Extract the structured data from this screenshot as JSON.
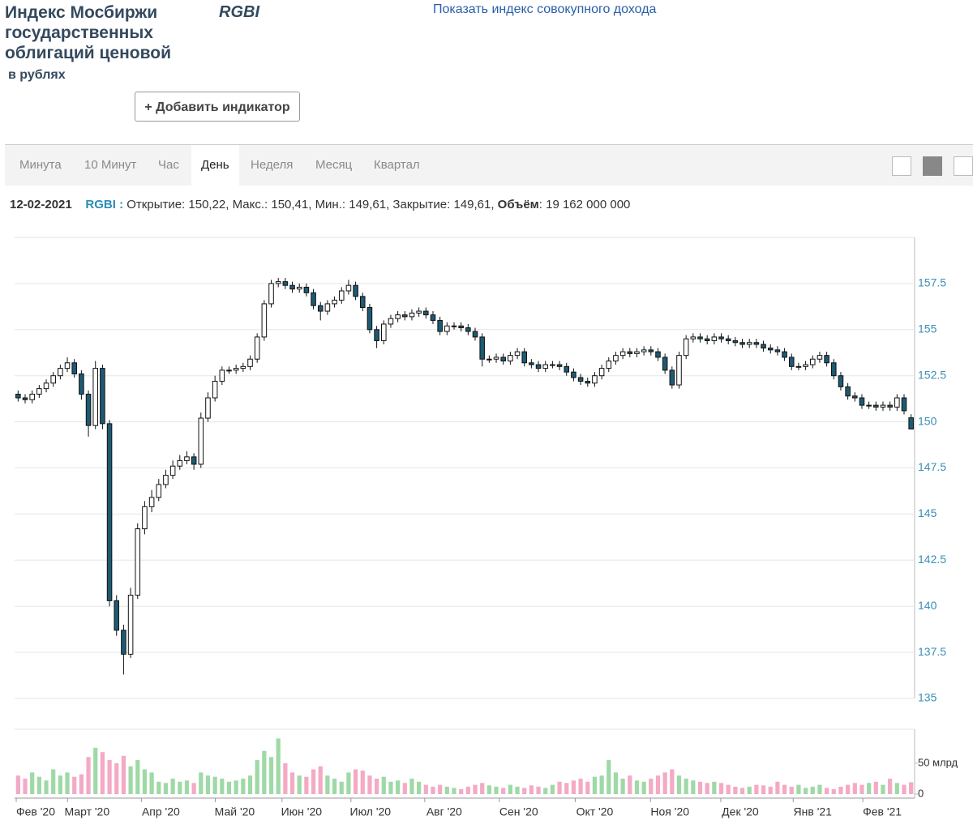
{
  "header": {
    "title": "Индекс Мосбиржи государственных облигаций ценовой",
    "ticker": "RGBI",
    "unit": "в рублях",
    "link": "Показать индекс совокупного дохода",
    "add_button": "+ Добавить индикатор"
  },
  "tabs": [
    "Минута",
    "10 Минут",
    "Час",
    "День",
    "Неделя",
    "Месяц",
    "Квартал"
  ],
  "active_tab": 3,
  "info": {
    "date": "12-02-2021",
    "ticker": "RGBI",
    "separator": ":",
    "ohlc": " Открытие: 150,22, Макс.: 150,41, Мин.: 149,61, Закрытие: 149,61, ",
    "volume_label": "Объём",
    "volume_text": ": 19 162 000 000"
  },
  "chart_data": {
    "type": "candlestick",
    "open": [
      151.5,
      151.3,
      151.2,
      151.5,
      151.8,
      152.1,
      152.5,
      152.9,
      153.2,
      152.6,
      151.5,
      149.8,
      152.9,
      149.9,
      140.3,
      138.7,
      137.4,
      140.6,
      144.2,
      145.4,
      145.9,
      146.6,
      147.1,
      147.6,
      147.9,
      148.1,
      147.7,
      150.2,
      151.3,
      152.2,
      152.8,
      152.8,
      152.9,
      153.0,
      153.4,
      154.6,
      156.4,
      157.5,
      157.6,
      157.4,
      157.2,
      157.3,
      157.0,
      156.3,
      156.0,
      156.4,
      156.6,
      157.1,
      157.4,
      156.8,
      156.2,
      155.0,
      154.4,
      155.3,
      155.6,
      155.8,
      155.7,
      155.9,
      156.0,
      155.8,
      155.5,
      154.9,
      155.2,
      155.2,
      155.1,
      154.9,
      154.6,
      153.4,
      153.4,
      153.5,
      153.3,
      153.6,
      153.8,
      153.2,
      153.1,
      152.9,
      153.1,
      153.1,
      153.0,
      152.7,
      152.4,
      152.2,
      152.1,
      152.5,
      152.9,
      153.3,
      153.6,
      153.8,
      153.7,
      153.8,
      153.9,
      153.8,
      153.5,
      152.8,
      152.0,
      153.6,
      154.5,
      154.6,
      154.5,
      154.4,
      154.6,
      154.5,
      154.4,
      154.3,
      154.2,
      154.3,
      154.2,
      154.0,
      153.9,
      153.8,
      153.5,
      153.0,
      153.0,
      153.1,
      153.4,
      153.6,
      153.2,
      152.5,
      151.9,
      151.4,
      151.3,
      150.9,
      150.9,
      150.8,
      150.9,
      150.8,
      151.3,
      150.22
    ],
    "high": [
      151.7,
      151.5,
      151.7,
      152.0,
      152.3,
      152.7,
      153.1,
      153.5,
      153.4,
      152.8,
      151.7,
      153.3,
      153.1,
      150.1,
      140.6,
      139.0,
      141.0,
      144.5,
      145.7,
      146.3,
      146.9,
      147.4,
      147.9,
      148.2,
      148.4,
      148.3,
      150.5,
      151.6,
      152.5,
      153.0,
      153.0,
      153.1,
      153.2,
      153.6,
      154.8,
      156.6,
      157.7,
      157.8,
      157.8,
      157.6,
      157.5,
      157.5,
      157.2,
      156.5,
      156.6,
      156.8,
      157.3,
      157.7,
      157.6,
      157.0,
      156.4,
      155.2,
      155.5,
      155.8,
      156.0,
      156.0,
      156.1,
      156.2,
      156.2,
      156.0,
      155.7,
      155.4,
      155.4,
      155.4,
      155.3,
      155.1,
      154.8,
      153.6,
      153.7,
      153.7,
      153.8,
      154.0,
      154.0,
      153.4,
      153.3,
      153.3,
      153.3,
      153.3,
      153.2,
      152.9,
      152.6,
      152.4,
      152.7,
      153.1,
      153.5,
      153.8,
      154.0,
      154.0,
      154.0,
      154.1,
      154.1,
      154.0,
      153.7,
      153.0,
      153.8,
      154.7,
      154.8,
      154.8,
      154.7,
      154.8,
      154.8,
      154.7,
      154.6,
      154.5,
      154.5,
      154.5,
      154.4,
      154.2,
      154.1,
      154.0,
      153.7,
      153.2,
      153.3,
      153.6,
      153.8,
      153.8,
      153.4,
      152.7,
      152.1,
      151.6,
      151.5,
      151.1,
      151.1,
      151.1,
      151.1,
      151.5,
      151.5,
      150.41
    ],
    "low": [
      151.1,
      151.0,
      151.0,
      151.3,
      151.6,
      151.9,
      152.3,
      152.7,
      152.4,
      151.2,
      149.2,
      149.6,
      149.6,
      140.0,
      138.4,
      136.3,
      137.2,
      140.4,
      143.9,
      145.1,
      145.7,
      146.4,
      146.9,
      147.4,
      147.7,
      147.4,
      147.5,
      150.0,
      151.1,
      152.0,
      152.6,
      152.6,
      152.7,
      152.8,
      153.2,
      154.4,
      156.2,
      157.3,
      157.2,
      157.0,
      157.0,
      156.8,
      156.1,
      155.5,
      155.8,
      156.2,
      156.4,
      156.9,
      156.6,
      156.0,
      154.8,
      154.0,
      154.2,
      155.1,
      155.4,
      155.5,
      155.5,
      155.7,
      155.6,
      155.3,
      154.7,
      154.7,
      155.0,
      154.9,
      154.7,
      154.4,
      153.0,
      153.2,
      153.2,
      153.1,
      153.1,
      153.4,
      153.0,
      152.9,
      152.7,
      152.7,
      152.9,
      152.8,
      152.5,
      152.2,
      152.0,
      151.9,
      151.9,
      152.3,
      152.7,
      153.1,
      153.4,
      153.5,
      153.5,
      153.6,
      153.6,
      153.3,
      152.6,
      151.8,
      151.8,
      153.4,
      154.3,
      154.3,
      154.2,
      154.2,
      154.3,
      154.2,
      154.1,
      154.0,
      154.0,
      154.0,
      153.8,
      153.7,
      153.6,
      153.3,
      152.8,
      152.8,
      152.8,
      152.9,
      153.2,
      153.0,
      152.3,
      151.7,
      151.2,
      151.1,
      150.7,
      150.7,
      150.6,
      150.6,
      150.6,
      150.6,
      150.4,
      149.61
    ],
    "close": [
      151.3,
      151.2,
      151.5,
      151.8,
      152.1,
      152.5,
      152.9,
      153.2,
      152.6,
      151.5,
      149.8,
      152.9,
      149.9,
      140.3,
      138.7,
      137.4,
      140.6,
      144.2,
      145.4,
      145.9,
      146.6,
      147.1,
      147.6,
      147.9,
      148.1,
      147.7,
      150.2,
      151.3,
      152.2,
      152.8,
      152.8,
      152.9,
      153.0,
      153.4,
      154.6,
      156.4,
      157.5,
      157.6,
      157.4,
      157.2,
      157.3,
      157.0,
      156.3,
      156.0,
      156.4,
      156.6,
      157.1,
      157.4,
      156.8,
      156.2,
      155.0,
      154.4,
      155.3,
      155.6,
      155.8,
      155.7,
      155.9,
      156.0,
      155.8,
      155.5,
      154.9,
      155.2,
      155.2,
      155.1,
      154.9,
      154.6,
      153.4,
      153.4,
      153.5,
      153.3,
      153.6,
      153.8,
      153.2,
      153.1,
      152.9,
      153.1,
      153.1,
      153.0,
      152.7,
      152.4,
      152.2,
      152.1,
      152.5,
      152.9,
      153.3,
      153.6,
      153.8,
      153.7,
      153.8,
      153.9,
      153.8,
      153.5,
      152.8,
      152.0,
      153.6,
      154.5,
      154.6,
      154.5,
      154.4,
      154.6,
      154.5,
      154.4,
      154.3,
      154.2,
      154.3,
      154.2,
      154.0,
      153.9,
      153.8,
      153.5,
      153.0,
      153.0,
      153.1,
      153.4,
      153.6,
      153.2,
      152.5,
      151.9,
      151.4,
      151.3,
      150.9,
      150.9,
      150.8,
      150.9,
      150.8,
      151.3,
      150.6,
      149.61
    ],
    "volume": [
      30,
      25,
      35,
      28,
      22,
      40,
      30,
      35,
      28,
      32,
      60,
      75,
      68,
      55,
      50,
      62,
      45,
      55,
      40,
      35,
      20,
      18,
      25,
      20,
      22,
      18,
      35,
      30,
      28,
      25,
      20,
      22,
      25,
      30,
      55,
      70,
      60,
      90,
      50,
      35,
      30,
      28,
      40,
      45,
      30,
      25,
      20,
      35,
      40,
      38,
      30,
      25,
      28,
      20,
      22,
      18,
      25,
      20,
      15,
      12,
      15,
      12,
      10,
      8,
      12,
      15,
      18,
      14,
      12,
      10,
      15,
      12,
      10,
      14,
      12,
      10,
      15,
      20,
      18,
      22,
      25,
      20,
      28,
      30,
      55,
      35,
      25,
      30,
      22,
      20,
      25,
      30,
      35,
      40,
      30,
      25,
      22,
      20,
      18,
      20,
      18,
      15,
      12,
      10,
      12,
      15,
      14,
      12,
      20,
      15,
      12,
      15,
      10,
      12,
      15,
      10,
      8,
      12,
      15,
      18,
      15,
      18,
      20,
      15,
      25,
      18,
      15,
      19.162
    ],
    "xlim": [
      0,
      128
    ],
    "xticks": [
      {
        "value": 3.0,
        "label": "Фев '20"
      },
      {
        "value": 10.3,
        "label": "Март '20"
      },
      {
        "value": 20.8,
        "label": "Апр '20"
      },
      {
        "value": 31.3,
        "label": "Май '20"
      },
      {
        "value": 40.8,
        "label": "Июн '20"
      },
      {
        "value": 50.6,
        "label": "Июл '20"
      },
      {
        "value": 61.1,
        "label": "Авг '20"
      },
      {
        "value": 71.7,
        "label": "Сен '20"
      },
      {
        "value": 82.5,
        "label": "Окт '20"
      },
      {
        "value": 93.2,
        "label": "Ноя '20"
      },
      {
        "value": 103.2,
        "label": "Дек '20"
      },
      {
        "value": 113.5,
        "label": "Янв '21"
      },
      {
        "value": 123.4,
        "label": "Фев '21"
      }
    ],
    "ylim": [
      135,
      160
    ],
    "yticks": [
      135,
      137.5,
      140,
      142.5,
      145,
      147.5,
      150,
      152.5,
      155,
      157.5
    ],
    "volume_ylim": [
      0,
      105
    ],
    "volume_yticks": [
      0,
      {
        "value": 50,
        "label": "50 млрд"
      }
    ],
    "up_color": "#ffffff",
    "down_color": "#1d5a73",
    "wick_color": "#111111",
    "volume_up_color": "#9ed9a6",
    "volume_down_color": "#f4a9c4",
    "grid": true
  }
}
